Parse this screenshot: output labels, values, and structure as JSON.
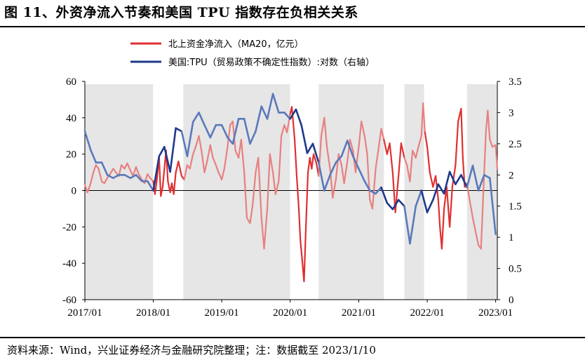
{
  "figure": {
    "title": "图 11、外资净流入节奏和美国 TPU 指数存在负相关关系",
    "source": "资料来源：Wind，兴业证券经济与金融研究院整理；注：数据截至 2023/1/10"
  },
  "chart_data": {
    "type": "line",
    "x_tick_labels": [
      "2017/01",
      "2018/01",
      "2019/01",
      "2020/01",
      "2021/01",
      "2022/01",
      "2023/01"
    ],
    "x_range": [
      "2017-01-01",
      "2023-01-10"
    ],
    "y_left": {
      "ylim": [
        -60,
        60
      ],
      "ticks": [
        "60",
        "40",
        "20",
        "0",
        "-20",
        "-40",
        "-60"
      ]
    },
    "y_right": {
      "ylim": [
        0,
        3.5
      ],
      "ticks": [
        "3.5",
        "3",
        "2.5",
        "2",
        "1.5",
        "1",
        "0.5",
        "0"
      ]
    },
    "legend_position": "top-center",
    "shaded_periods": [
      [
        "2017-01-01",
        "2017-12-31"
      ],
      [
        "2018-06-10",
        "2019-12-31"
      ],
      [
        "2020-06-01",
        "2021-05-15"
      ],
      [
        "2021-09-01",
        "2021-12-15"
      ],
      [
        "2022-08-01",
        "2023-01-10"
      ]
    ],
    "series": [
      {
        "name": "北上资金净流入（MA20，亿元）",
        "axis": "left",
        "color": "#e03030",
        "color_light": "#e88080",
        "points": [
          [
            "2017-01-01",
            3
          ],
          [
            "2017-01-15",
            -1
          ],
          [
            "2017-02-01",
            4
          ],
          [
            "2017-02-15",
            10
          ],
          [
            "2017-03-01",
            14
          ],
          [
            "2017-03-15",
            12
          ],
          [
            "2017-04-01",
            5
          ],
          [
            "2017-04-15",
            4
          ],
          [
            "2017-05-01",
            7
          ],
          [
            "2017-05-15",
            9
          ],
          [
            "2017-06-01",
            12
          ],
          [
            "2017-06-15",
            10
          ],
          [
            "2017-07-01",
            8
          ],
          [
            "2017-07-15",
            14
          ],
          [
            "2017-08-01",
            12
          ],
          [
            "2017-08-15",
            15
          ],
          [
            "2017-09-01",
            11
          ],
          [
            "2017-09-15",
            8
          ],
          [
            "2017-10-01",
            13
          ],
          [
            "2017-10-15",
            9
          ],
          [
            "2017-11-01",
            6
          ],
          [
            "2017-11-15",
            4
          ],
          [
            "2017-12-01",
            9
          ],
          [
            "2017-12-15",
            7
          ],
          [
            "2018-01-01",
            5
          ],
          [
            "2018-01-10",
            -2
          ],
          [
            "2018-01-20",
            6
          ],
          [
            "2018-02-01",
            18
          ],
          [
            "2018-02-10",
            -3
          ],
          [
            "2018-02-20",
            2
          ],
          [
            "2018-03-01",
            12
          ],
          [
            "2018-03-10",
            22
          ],
          [
            "2018-03-20",
            5
          ],
          [
            "2018-04-01",
            -1
          ],
          [
            "2018-04-10",
            4
          ],
          [
            "2018-04-20",
            -2
          ],
          [
            "2018-05-01",
            10
          ],
          [
            "2018-05-15",
            16
          ],
          [
            "2018-06-01",
            8
          ],
          [
            "2018-06-15",
            6
          ],
          [
            "2018-07-01",
            14
          ],
          [
            "2018-07-15",
            12
          ],
          [
            "2018-08-01",
            20
          ],
          [
            "2018-08-15",
            24
          ],
          [
            "2018-09-01",
            30
          ],
          [
            "2018-09-15",
            22
          ],
          [
            "2018-10-01",
            10
          ],
          [
            "2018-10-15",
            16
          ],
          [
            "2018-11-01",
            25
          ],
          [
            "2018-11-15",
            18
          ],
          [
            "2018-12-01",
            14
          ],
          [
            "2018-12-15",
            10
          ],
          [
            "2019-01-01",
            6
          ],
          [
            "2019-01-15",
            12
          ],
          [
            "2019-02-01",
            24
          ],
          [
            "2019-02-15",
            36
          ],
          [
            "2019-03-01",
            38
          ],
          [
            "2019-03-15",
            22
          ],
          [
            "2019-04-01",
            18
          ],
          [
            "2019-04-15",
            28
          ],
          [
            "2019-05-01",
            10
          ],
          [
            "2019-05-15",
            -15
          ],
          [
            "2019-06-01",
            -18
          ],
          [
            "2019-06-15",
            -8
          ],
          [
            "2019-07-01",
            10
          ],
          [
            "2019-07-15",
            18
          ],
          [
            "2019-08-01",
            -15
          ],
          [
            "2019-08-15",
            -32
          ],
          [
            "2019-09-01",
            -10
          ],
          [
            "2019-09-15",
            20
          ],
          [
            "2019-10-01",
            10
          ],
          [
            "2019-10-15",
            -2
          ],
          [
            "2019-11-01",
            5
          ],
          [
            "2019-11-15",
            30
          ],
          [
            "2019-12-01",
            36
          ],
          [
            "2019-12-15",
            32
          ],
          [
            "2020-01-01",
            42
          ],
          [
            "2020-01-10",
            46
          ],
          [
            "2020-01-25",
            28
          ],
          [
            "2020-02-05",
            8
          ],
          [
            "2020-02-15",
            -8
          ],
          [
            "2020-02-25",
            -28
          ],
          [
            "2020-03-05",
            -38
          ],
          [
            "2020-03-15",
            -50
          ],
          [
            "2020-03-25",
            -20
          ],
          [
            "2020-04-05",
            10
          ],
          [
            "2020-04-15",
            18
          ],
          [
            "2020-04-25",
            12
          ],
          [
            "2020-05-05",
            20
          ],
          [
            "2020-05-20",
            15
          ],
          [
            "2020-06-01",
            8
          ],
          [
            "2020-06-15",
            30
          ],
          [
            "2020-07-01",
            40
          ],
          [
            "2020-07-15",
            24
          ],
          [
            "2020-08-01",
            12
          ],
          [
            "2020-08-15",
            -4
          ],
          [
            "2020-09-01",
            6
          ],
          [
            "2020-09-15",
            20
          ],
          [
            "2020-10-01",
            14
          ],
          [
            "2020-10-15",
            4
          ],
          [
            "2020-11-01",
            16
          ],
          [
            "2020-11-15",
            28
          ],
          [
            "2020-12-01",
            22
          ],
          [
            "2020-12-15",
            10
          ],
          [
            "2021-01-01",
            24
          ],
          [
            "2021-01-15",
            38
          ],
          [
            "2021-02-01",
            30
          ],
          [
            "2021-02-15",
            20
          ],
          [
            "2021-03-01",
            -5
          ],
          [
            "2021-03-15",
            -10
          ],
          [
            "2021-04-01",
            12
          ],
          [
            "2021-04-15",
            22
          ],
          [
            "2021-05-01",
            34
          ],
          [
            "2021-05-15",
            28
          ],
          [
            "2021-06-01",
            20
          ],
          [
            "2021-06-15",
            26
          ],
          [
            "2021-07-01",
            10
          ],
          [
            "2021-07-15",
            -12
          ],
          [
            "2021-08-01",
            8
          ],
          [
            "2021-08-15",
            26
          ],
          [
            "2021-09-01",
            18
          ],
          [
            "2021-09-15",
            14
          ],
          [
            "2021-10-01",
            5
          ],
          [
            "2021-10-15",
            22
          ],
          [
            "2021-11-01",
            18
          ],
          [
            "2021-11-15",
            24
          ],
          [
            "2021-12-01",
            30
          ],
          [
            "2021-12-10",
            48
          ],
          [
            "2021-12-20",
            32
          ],
          [
            "2022-01-01",
            24
          ],
          [
            "2022-01-15",
            10
          ],
          [
            "2022-02-01",
            2
          ],
          [
            "2022-02-15",
            8
          ],
          [
            "2022-03-01",
            -5
          ],
          [
            "2022-03-10",
            -20
          ],
          [
            "2022-03-20",
            -32
          ],
          [
            "2022-04-01",
            -10
          ],
          [
            "2022-04-15",
            2
          ],
          [
            "2022-05-01",
            -20
          ],
          [
            "2022-05-15",
            2
          ],
          [
            "2022-06-01",
            14
          ],
          [
            "2022-06-15",
            38
          ],
          [
            "2022-07-01",
            45
          ],
          [
            "2022-07-10",
            18
          ],
          [
            "2022-07-20",
            2
          ],
          [
            "2022-08-01",
            4
          ],
          [
            "2022-08-15",
            -5
          ],
          [
            "2022-09-01",
            -15
          ],
          [
            "2022-09-15",
            -22
          ],
          [
            "2022-10-01",
            -30
          ],
          [
            "2022-10-15",
            -32
          ],
          [
            "2022-11-01",
            10
          ],
          [
            "2022-11-10",
            32
          ],
          [
            "2022-11-20",
            44
          ],
          [
            "2022-12-01",
            28
          ],
          [
            "2022-12-15",
            24
          ],
          [
            "2023-01-01",
            25
          ],
          [
            "2023-01-10",
            12
          ]
        ]
      },
      {
        "name": "美国:TPU（贸易政策不确定性指数）:对数（右轴）",
        "axis": "right",
        "color": "#1f3a8c",
        "color_light": "#5b79bb",
        "points": [
          [
            "2017-01-01",
            2.7
          ],
          [
            "2017-02-01",
            2.4
          ],
          [
            "2017-03-01",
            2.2
          ],
          [
            "2017-04-01",
            2.2
          ],
          [
            "2017-05-01",
            2.0
          ],
          [
            "2017-06-01",
            1.95
          ],
          [
            "2017-07-01",
            2.0
          ],
          [
            "2017-08-01",
            2.0
          ],
          [
            "2017-09-01",
            1.95
          ],
          [
            "2017-10-01",
            2.0
          ],
          [
            "2017-11-01",
            1.9
          ],
          [
            "2017-12-01",
            1.9
          ],
          [
            "2018-01-01",
            1.75
          ],
          [
            "2018-02-01",
            2.3
          ],
          [
            "2018-03-01",
            2.45
          ],
          [
            "2018-04-01",
            2.05
          ],
          [
            "2018-05-01",
            2.75
          ],
          [
            "2018-06-01",
            2.7
          ],
          [
            "2018-07-01",
            2.3
          ],
          [
            "2018-08-01",
            2.85
          ],
          [
            "2018-09-01",
            3.0
          ],
          [
            "2018-10-01",
            2.8
          ],
          [
            "2018-11-01",
            2.6
          ],
          [
            "2018-12-01",
            2.8
          ],
          [
            "2019-01-01",
            2.8
          ],
          [
            "2019-02-01",
            2.6
          ],
          [
            "2019-03-01",
            2.5
          ],
          [
            "2019-04-01",
            2.9
          ],
          [
            "2019-05-01",
            2.9
          ],
          [
            "2019-06-01",
            2.5
          ],
          [
            "2019-07-01",
            2.7
          ],
          [
            "2019-08-01",
            3.1
          ],
          [
            "2019-09-01",
            2.9
          ],
          [
            "2019-10-01",
            3.3
          ],
          [
            "2019-11-01",
            3.0
          ],
          [
            "2019-12-01",
            3.0
          ],
          [
            "2020-01-01",
            2.9
          ],
          [
            "2020-02-01",
            3.05
          ],
          [
            "2020-03-01",
            2.8
          ],
          [
            "2020-04-01",
            2.35
          ],
          [
            "2020-05-01",
            2.5
          ],
          [
            "2020-06-01",
            2.2
          ],
          [
            "2020-07-01",
            1.75
          ],
          [
            "2020-08-01",
            2.0
          ],
          [
            "2020-09-01",
            2.2
          ],
          [
            "2020-10-01",
            2.3
          ],
          [
            "2020-11-01",
            2.55
          ],
          [
            "2020-12-01",
            2.3
          ],
          [
            "2021-01-01",
            2.1
          ],
          [
            "2021-02-01",
            1.9
          ],
          [
            "2021-03-01",
            1.75
          ],
          [
            "2021-04-01",
            1.7
          ],
          [
            "2021-05-01",
            1.8
          ],
          [
            "2021-06-01",
            1.55
          ],
          [
            "2021-07-01",
            1.45
          ],
          [
            "2021-08-01",
            1.6
          ],
          [
            "2021-09-01",
            1.5
          ],
          [
            "2021-10-01",
            0.9
          ],
          [
            "2021-11-01",
            1.5
          ],
          [
            "2021-12-01",
            1.75
          ],
          [
            "2022-01-01",
            1.4
          ],
          [
            "2022-02-01",
            1.6
          ],
          [
            "2022-03-01",
            1.85
          ],
          [
            "2022-04-01",
            1.7
          ],
          [
            "2022-05-01",
            2.05
          ],
          [
            "2022-06-01",
            1.85
          ],
          [
            "2022-07-01",
            2.0
          ],
          [
            "2022-08-01",
            1.8
          ],
          [
            "2022-09-01",
            2.15
          ],
          [
            "2022-10-01",
            1.75
          ],
          [
            "2022-11-01",
            2.0
          ],
          [
            "2022-12-01",
            1.95
          ],
          [
            "2023-01-01",
            1.05
          ]
        ]
      }
    ]
  }
}
